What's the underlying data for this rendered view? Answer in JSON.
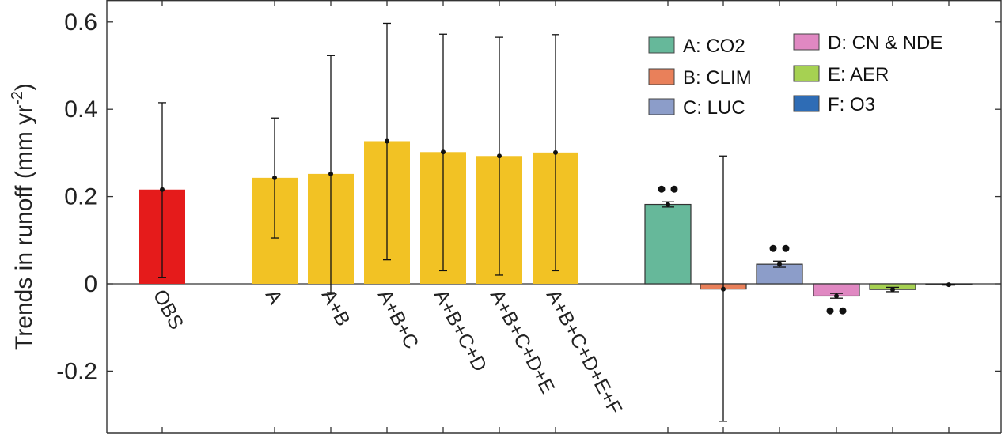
{
  "chart_data": {
    "type": "bar",
    "ylabel_main": "Trends in runoff (mm yr",
    "ylabel_sup": "-2",
    "ylabel_close": ")",
    "ylim": [
      -0.35,
      0.66
    ],
    "yticks": [
      -0.2,
      0,
      0.2,
      0.4,
      0.6
    ],
    "ytick_labels": [
      "-0.2",
      "0",
      "0.2",
      "0.4",
      "0.6"
    ],
    "colors": {
      "obs": "#e51b1b",
      "combo": "#f2c224",
      "co2": "#66b89a",
      "clim": "#e9805a",
      "luc": "#8c9dc9",
      "cn_nde": "#e088c2",
      "aer": "#a6d152",
      "o3": "#2e6cb5"
    },
    "bars": [
      {
        "label": "OBS",
        "group": "obs",
        "value": 0.216,
        "err_low": 0.015,
        "err_high": 0.415,
        "color_key": "obs"
      },
      {
        "label": "A",
        "group": "combo",
        "value": 0.243,
        "err_low": 0.105,
        "err_high": 0.38,
        "color_key": "combo"
      },
      {
        "label": "A+B",
        "group": "combo",
        "value": 0.252,
        "err_low": -0.02,
        "err_high": 0.523,
        "color_key": "combo"
      },
      {
        "label": "A+B+C",
        "group": "combo",
        "value": 0.327,
        "err_low": 0.055,
        "err_high": 0.597,
        "color_key": "combo"
      },
      {
        "label": "A+B+C+D",
        "group": "combo",
        "value": 0.302,
        "err_low": 0.03,
        "err_high": 0.572,
        "color_key": "combo"
      },
      {
        "label": "A+B+C+D+E",
        "group": "combo",
        "value": 0.293,
        "err_low": 0.02,
        "err_high": 0.565,
        "color_key": "combo"
      },
      {
        "label": "A+B+C+D+E+F",
        "group": "combo",
        "value": 0.301,
        "err_low": 0.03,
        "err_high": 0.571,
        "color_key": "combo"
      },
      {
        "label": "",
        "group": "factor",
        "value": 0.182,
        "err_low": 0.176,
        "err_high": 0.188,
        "color_key": "co2",
        "significance_dots": 2
      },
      {
        "label": "",
        "group": "factor",
        "value": -0.012,
        "err_low": -0.315,
        "err_high": 0.293,
        "color_key": "clim",
        "significance_dots": 0
      },
      {
        "label": "",
        "group": "factor",
        "value": 0.045,
        "err_low": 0.038,
        "err_high": 0.052,
        "color_key": "luc",
        "significance_dots": 2
      },
      {
        "label": "",
        "group": "factor",
        "value": -0.028,
        "err_low": -0.033,
        "err_high": -0.022,
        "color_key": "cn_nde",
        "significance_dots": 2
      },
      {
        "label": "",
        "group": "factor",
        "value": -0.013,
        "err_low": -0.018,
        "err_high": -0.008,
        "color_key": "aer",
        "significance_dots": 0
      },
      {
        "label": "",
        "group": "factor",
        "value": -0.002,
        "err_low": -0.003,
        "err_high": -0.001,
        "color_key": "o3",
        "significance_dots": 0
      }
    ],
    "legend": [
      {
        "label": "A: CO2",
        "color_key": "co2"
      },
      {
        "label": "B: CLIM",
        "color_key": "clim"
      },
      {
        "label": "C: LUC",
        "color_key": "luc"
      },
      {
        "label": "D: CN & NDE",
        "color_key": "cn_nde"
      },
      {
        "label": "E: AER",
        "color_key": "aer"
      },
      {
        "label": "F: O3",
        "color_key": "o3"
      }
    ],
    "legend_position": "top-right"
  }
}
